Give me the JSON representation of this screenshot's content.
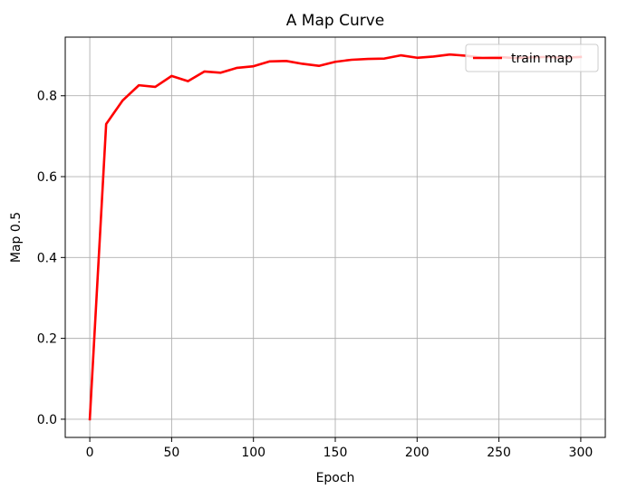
{
  "chart_data": {
    "type": "line",
    "title": "A Map Curve",
    "xlabel": "Epoch",
    "ylabel": "Map 0.5",
    "xlim": [
      -15,
      315
    ],
    "ylim": [
      -0.045,
      0.945
    ],
    "xticks": [
      0,
      50,
      100,
      150,
      200,
      250,
      300
    ],
    "yticks": [
      0.0,
      0.2,
      0.4,
      0.6,
      0.8
    ],
    "ytick_labels": [
      "0.0",
      "0.2",
      "0.4",
      "0.6",
      "0.8"
    ],
    "grid": true,
    "legend_position": "top-right",
    "series": [
      {
        "name": "train map",
        "color": "#ff0000",
        "x": [
          0,
          10,
          20,
          30,
          40,
          50,
          60,
          70,
          80,
          90,
          100,
          110,
          120,
          130,
          140,
          150,
          160,
          170,
          180,
          190,
          200,
          210,
          220,
          230,
          240,
          250,
          260,
          270,
          280,
          290,
          300
        ],
        "y": [
          0.0,
          0.73,
          0.788,
          0.826,
          0.822,
          0.849,
          0.836,
          0.86,
          0.857,
          0.869,
          0.873,
          0.885,
          0.886,
          0.879,
          0.874,
          0.884,
          0.889,
          0.891,
          0.892,
          0.9,
          0.894,
          0.897,
          0.902,
          0.899,
          0.894,
          0.896,
          0.893,
          0.895,
          0.896,
          0.894,
          0.896
        ]
      }
    ]
  }
}
